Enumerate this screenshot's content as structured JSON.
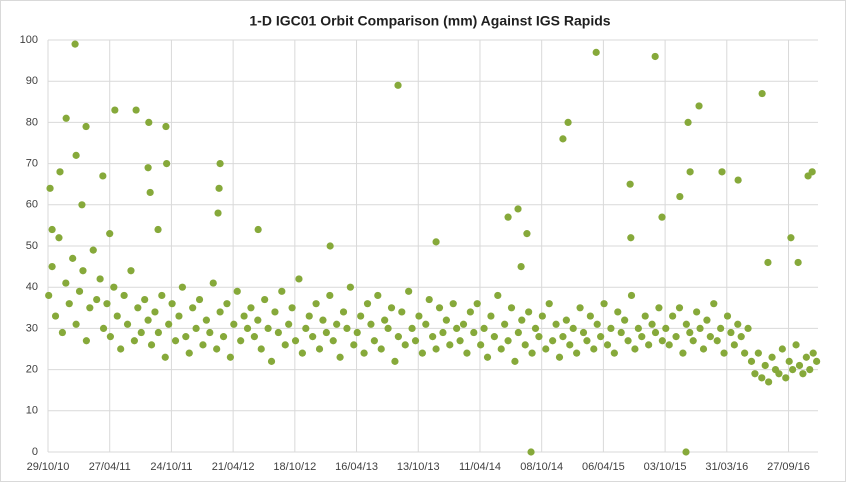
{
  "chart_data": {
    "type": "scatter",
    "title": "1-D IGC01 Orbit Comparison (mm) Against IGS Rapids",
    "color": "#86a93a",
    "grid": true,
    "xlim": [
      40480,
      42726
    ],
    "ylim": [
      0,
      100
    ],
    "yticks": [
      0,
      10,
      20,
      30,
      40,
      50,
      60,
      70,
      80,
      90,
      100
    ],
    "xticks": [
      {
        "value": 40480,
        "label": "29/10/10"
      },
      {
        "value": 40660,
        "label": "27/04/11"
      },
      {
        "value": 40840,
        "label": "24/10/11"
      },
      {
        "value": 41020,
        "label": "21/04/12"
      },
      {
        "value": 41200,
        "label": "18/10/12"
      },
      {
        "value": 41380,
        "label": "16/04/13"
      },
      {
        "value": 41560,
        "label": "13/10/13"
      },
      {
        "value": 41740,
        "label": "11/04/14"
      },
      {
        "value": 41920,
        "label": "08/10/14"
      },
      {
        "value": 42100,
        "label": "06/04/15"
      },
      {
        "value": 42280,
        "label": "03/10/15"
      },
      {
        "value": 42460,
        "label": "31/03/16"
      },
      {
        "value": 42640,
        "label": "27/09/16"
      }
    ],
    "x": [
      40482,
      40492,
      40502,
      40512,
      40522,
      40532,
      40542,
      40552,
      40562,
      40572,
      40582,
      40592,
      40602,
      40612,
      40622,
      40632,
      40642,
      40652,
      40662,
      40672,
      40682,
      40692,
      40702,
      40712,
      40722,
      40732,
      40742,
      40752,
      40762,
      40772,
      40782,
      40792,
      40802,
      40812,
      40822,
      40832,
      40842,
      40852,
      40862,
      40872,
      40882,
      40892,
      40902,
      40912,
      40922,
      40932,
      40942,
      40952,
      40962,
      40972,
      40982,
      40992,
      41002,
      41012,
      41022,
      41032,
      41042,
      41052,
      41062,
      41072,
      41082,
      41092,
      41102,
      41112,
      41122,
      41132,
      41142,
      41152,
      41162,
      41172,
      41182,
      41192,
      41202,
      41212,
      41222,
      41232,
      41242,
      41252,
      41262,
      41272,
      41282,
      41292,
      41302,
      41312,
      41322,
      41332,
      41342,
      41352,
      41362,
      41372,
      41382,
      41392,
      41402,
      41412,
      41422,
      41432,
      41442,
      41452,
      41462,
      41472,
      41482,
      41492,
      41502,
      41512,
      41522,
      41532,
      41542,
      41552,
      41562,
      41572,
      41582,
      41592,
      41602,
      41612,
      41622,
      41632,
      41642,
      41652,
      41662,
      41672,
      41682,
      41692,
      41702,
      41712,
      41722,
      41732,
      41742,
      41752,
      41762,
      41772,
      41782,
      41792,
      41802,
      41812,
      41822,
      41832,
      41842,
      41852,
      41862,
      41872,
      41882,
      41892,
      41902,
      41912,
      41922,
      41932,
      41942,
      41952,
      41962,
      41972,
      41982,
      41992,
      42002,
      42012,
      42022,
      42032,
      42042,
      42052,
      42062,
      42072,
      42082,
      42092,
      42102,
      42112,
      42122,
      42132,
      42142,
      42152,
      42162,
      42172,
      42182,
      42192,
      42202,
      42212,
      42222,
      42232,
      42242,
      42252,
      42262,
      42272,
      42282,
      42292,
      42302,
      42312,
      42322,
      42332,
      42342,
      42352,
      42362,
      42372,
      42382,
      42392,
      42402,
      42412,
      42422,
      42432,
      42442,
      42452,
      42462,
      42472,
      42482,
      42492,
      42502,
      42512,
      42522,
      42532,
      42542,
      42552,
      42562,
      42572,
      42582,
      42592,
      42602,
      42612,
      42622,
      42632,
      42642,
      42652,
      42662,
      42672,
      42682,
      42692,
      42702,
      42712,
      42722,
      40486,
      40492,
      40515,
      40533,
      40559,
      40562,
      40591,
      40579,
      40640,
      40660,
      40675,
      40737,
      40772,
      40774,
      40778,
      40824,
      40826,
      40801,
      40982,
      40979,
      40976,
      41093,
      41303,
      41501,
      41612,
      41822,
      41851,
      41860,
      41877,
      41889,
      41982,
      41997,
      42079,
      42178,
      42180,
      42251,
      42271,
      42341,
      42347,
      42353,
      42379,
      42323,
      42446,
      42493,
      42563,
      42647,
      42668,
      42697,
      42709,
      42580
    ],
    "values": [
      38,
      45,
      33,
      52,
      29,
      41,
      36,
      47,
      31,
      39,
      44,
      27,
      35,
      49,
      37,
      42,
      30,
      36,
      28,
      40,
      33,
      25,
      38,
      31,
      44,
      27,
      35,
      29,
      37,
      32,
      26,
      34,
      29,
      38,
      23,
      31,
      36,
      27,
      33,
      40,
      28,
      24,
      35,
      30,
      37,
      26,
      32,
      29,
      41,
      25,
      34,
      28,
      36,
      23,
      31,
      39,
      27,
      33,
      30,
      35,
      28,
      32,
      25,
      37,
      30,
      22,
      34,
      29,
      39,
      26,
      31,
      35,
      27,
      42,
      24,
      30,
      33,
      28,
      36,
      25,
      32,
      29,
      38,
      27,
      31,
      23,
      34,
      30,
      40,
      26,
      29,
      33,
      24,
      36,
      31,
      27,
      38,
      25,
      32,
      30,
      35,
      22,
      28,
      34,
      26,
      39,
      30,
      27,
      33,
      24,
      31,
      37,
      28,
      25,
      35,
      29,
      32,
      26,
      36,
      30,
      27,
      31,
      24,
      34,
      29,
      36,
      26,
      30,
      23,
      33,
      28,
      38,
      25,
      31,
      27,
      35,
      22,
      29,
      32,
      26,
      34,
      24,
      30,
      28,
      33,
      25,
      36,
      27,
      31,
      23,
      28,
      32,
      26,
      30,
      24,
      35,
      29,
      27,
      33,
      25,
      31,
      28,
      36,
      26,
      30,
      24,
      34,
      29,
      32,
      27,
      38,
      25,
      30,
      28,
      33,
      26,
      31,
      29,
      35,
      27,
      30,
      26,
      33,
      28,
      35,
      24,
      31,
      29,
      27,
      34,
      30,
      25,
      32,
      28,
      36,
      27,
      30,
      24,
      33,
      29,
      26,
      31,
      28,
      24,
      30,
      22,
      19,
      24,
      18,
      21,
      17,
      23,
      20,
      19,
      25,
      18,
      22,
      20,
      26,
      21,
      19,
      23,
      20,
      24,
      22,
      64,
      54,
      68,
      81,
      99,
      72,
      79,
      60,
      67,
      53,
      83,
      83,
      69,
      80,
      63,
      79,
      70,
      54,
      70,
      64,
      58,
      54,
      50,
      89,
      51,
      57,
      59,
      45,
      53,
      0,
      76,
      80,
      97,
      65,
      52,
      96,
      57,
      0,
      80,
      68,
      84,
      62,
      68,
      66,
      87,
      52,
      46,
      67,
      68,
      46
    ]
  }
}
